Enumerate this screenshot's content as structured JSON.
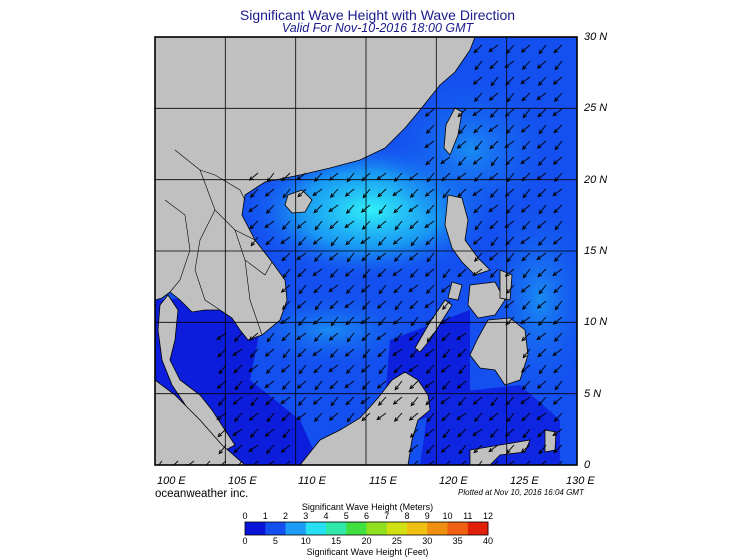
{
  "title": "Significant Wave Height with Wave Direction",
  "subtitle": "Valid For Nov-10-2016 18:00 GMT",
  "credit": "oceanweather inc.",
  "plotted": "Plotted at Nov 10, 2016 16:04 GMT",
  "map": {
    "lon_labels": [
      "100 E",
      "105 E",
      "110 E",
      "115 E",
      "120 E",
      "125 E",
      "130 E"
    ],
    "lat_labels": [
      "30 N",
      "25 N",
      "20 N",
      "15 N",
      "10 N",
      "5 N",
      "0"
    ],
    "extent": {
      "lon": [
        100,
        130
      ],
      "lat": [
        0,
        30
      ]
    },
    "land_color": "#c0c0c0",
    "arrow_direction": "southwest"
  },
  "colorbar": {
    "meters_title": "Significant Wave Height (Meters)",
    "feet_title": "Significant Wave Height (Feet)",
    "meters_ticks": [
      "0",
      "1",
      "2",
      "3",
      "4",
      "5",
      "6",
      "7",
      "8",
      "9",
      "10",
      "11",
      "12"
    ],
    "feet_ticks": [
      "0",
      "5",
      "10",
      "15",
      "20",
      "25",
      "30",
      "35",
      "40"
    ],
    "colors": [
      "#0a14d8",
      "#1450f0",
      "#1c9cf4",
      "#28e0f4",
      "#30e8a8",
      "#40e040",
      "#90e020",
      "#d0e010",
      "#f0c010",
      "#f09010",
      "#f06010",
      "#e02008"
    ]
  }
}
